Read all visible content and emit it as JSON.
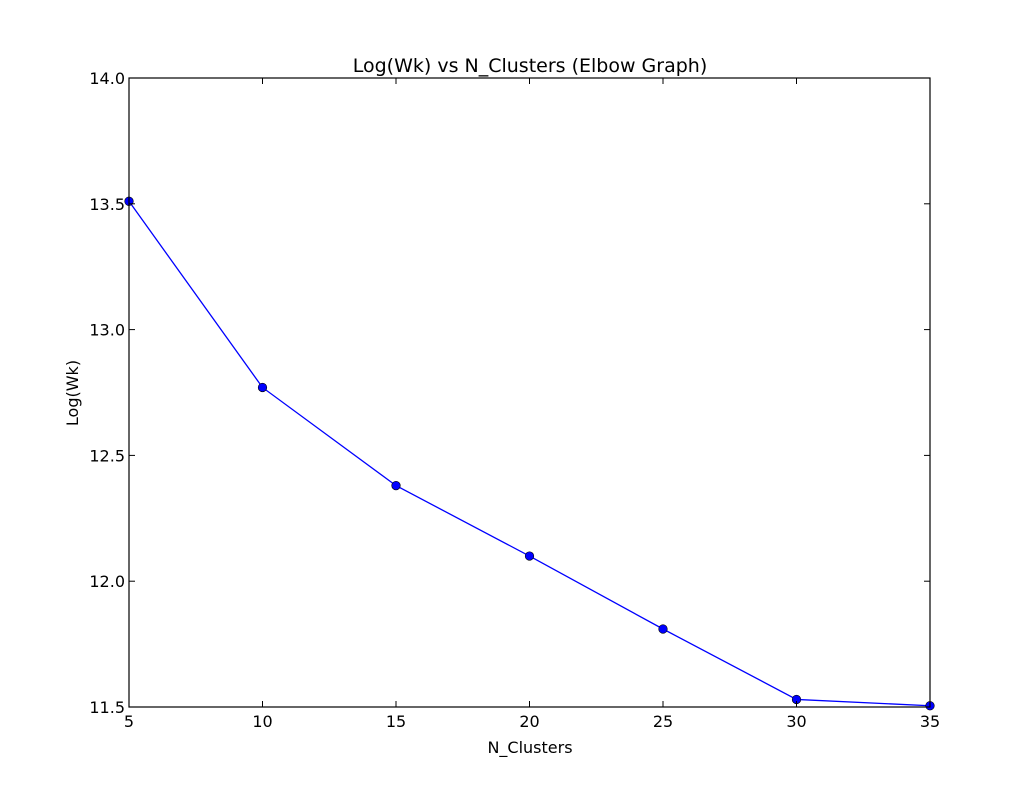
{
  "chart_data": {
    "type": "line",
    "title": "Log(Wk) vs N_Clusters (Elbow Graph)",
    "xlabel": "N_Clusters",
    "ylabel": "Log(Wk)",
    "xlim": [
      5,
      35
    ],
    "ylim": [
      11.5,
      14.0
    ],
    "xticks": [
      "5",
      "10",
      "15",
      "20",
      "25",
      "30",
      "35"
    ],
    "yticks": [
      "11.5",
      "12.0",
      "12.5",
      "13.0",
      "13.5",
      "14.0"
    ],
    "grid": false,
    "series": [
      {
        "color": "#0000ff",
        "marker": "circle",
        "x": [
          5,
          10,
          15,
          20,
          25,
          30,
          35
        ],
        "y": [
          13.51,
          12.77,
          12.38,
          12.1,
          11.81,
          11.53,
          11.505
        ]
      }
    ]
  }
}
